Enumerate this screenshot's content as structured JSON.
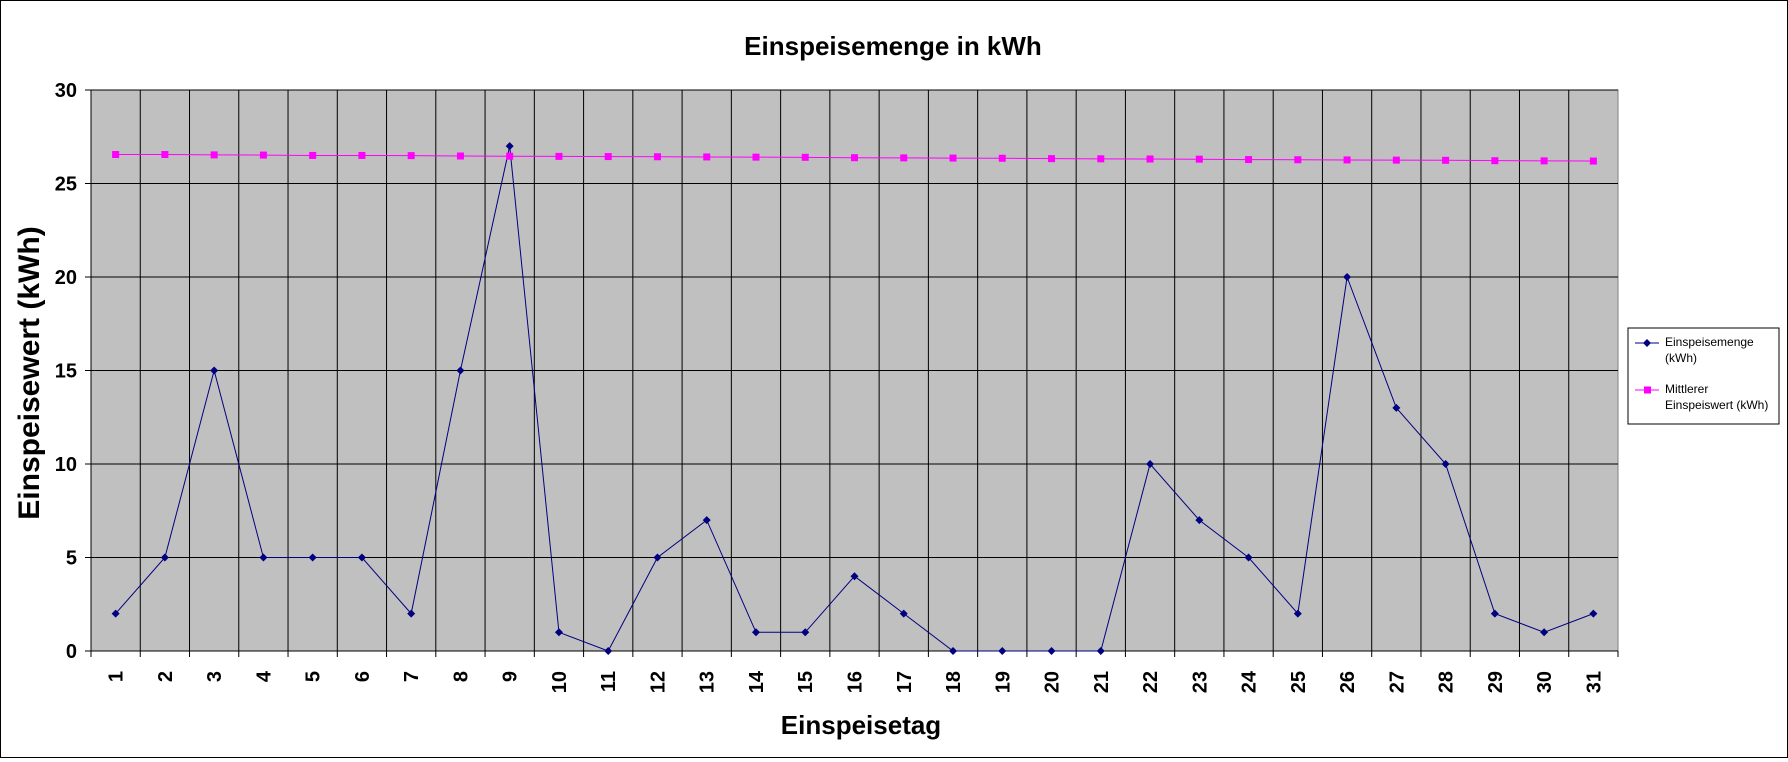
{
  "colors": {
    "plot_bg": "#c0c0c0",
    "series1": "#000080",
    "series2": "#ff00ff",
    "grid": "#000000"
  },
  "chart_data": {
    "type": "line",
    "title": "Einspeisemenge in kWh",
    "xlabel": "Einspeisetag",
    "ylabel": "Einspeisewert  (kWh)",
    "ylim": [
      0,
      30
    ],
    "yticks": [
      0,
      5,
      10,
      15,
      20,
      25,
      30
    ],
    "grid": true,
    "legend_position": "right",
    "categories": [
      "1",
      "2",
      "3",
      "4",
      "5",
      "6",
      "7",
      "8",
      "9",
      "10",
      "11",
      "12",
      "13",
      "14",
      "15",
      "16",
      "17",
      "18",
      "19",
      "20",
      "21",
      "22",
      "23",
      "24",
      "25",
      "26",
      "27",
      "28",
      "29",
      "30",
      "31"
    ],
    "series": [
      {
        "name": "Einspeisemenge (kWh)",
        "legend_lines": [
          "Einspeisemenge",
          "(kWh)"
        ],
        "color": "#000080",
        "marker": "diamond",
        "values": [
          2,
          5,
          15,
          5,
          5,
          5,
          2,
          15,
          27,
          1,
          0,
          5,
          7,
          1,
          1,
          4,
          2,
          0,
          0,
          0,
          0,
          10,
          7,
          5,
          2,
          20,
          13,
          10,
          2,
          1,
          2
        ]
      },
      {
        "name": "Mittlerer Einspeiswert (kWh)",
        "legend_lines": [
          "Mittlerer",
          "Einspeiswert (kWh)"
        ],
        "color": "#ff00ff",
        "marker": "square",
        "values": [
          26.55,
          26.55,
          26.53,
          26.52,
          26.5,
          26.5,
          26.49,
          26.47,
          26.46,
          26.45,
          26.44,
          26.43,
          26.42,
          26.41,
          26.4,
          26.38,
          26.37,
          26.36,
          26.35,
          26.33,
          26.32,
          26.31,
          26.3,
          26.28,
          26.27,
          26.26,
          26.25,
          26.24,
          26.22,
          26.21,
          26.2
        ]
      }
    ]
  }
}
